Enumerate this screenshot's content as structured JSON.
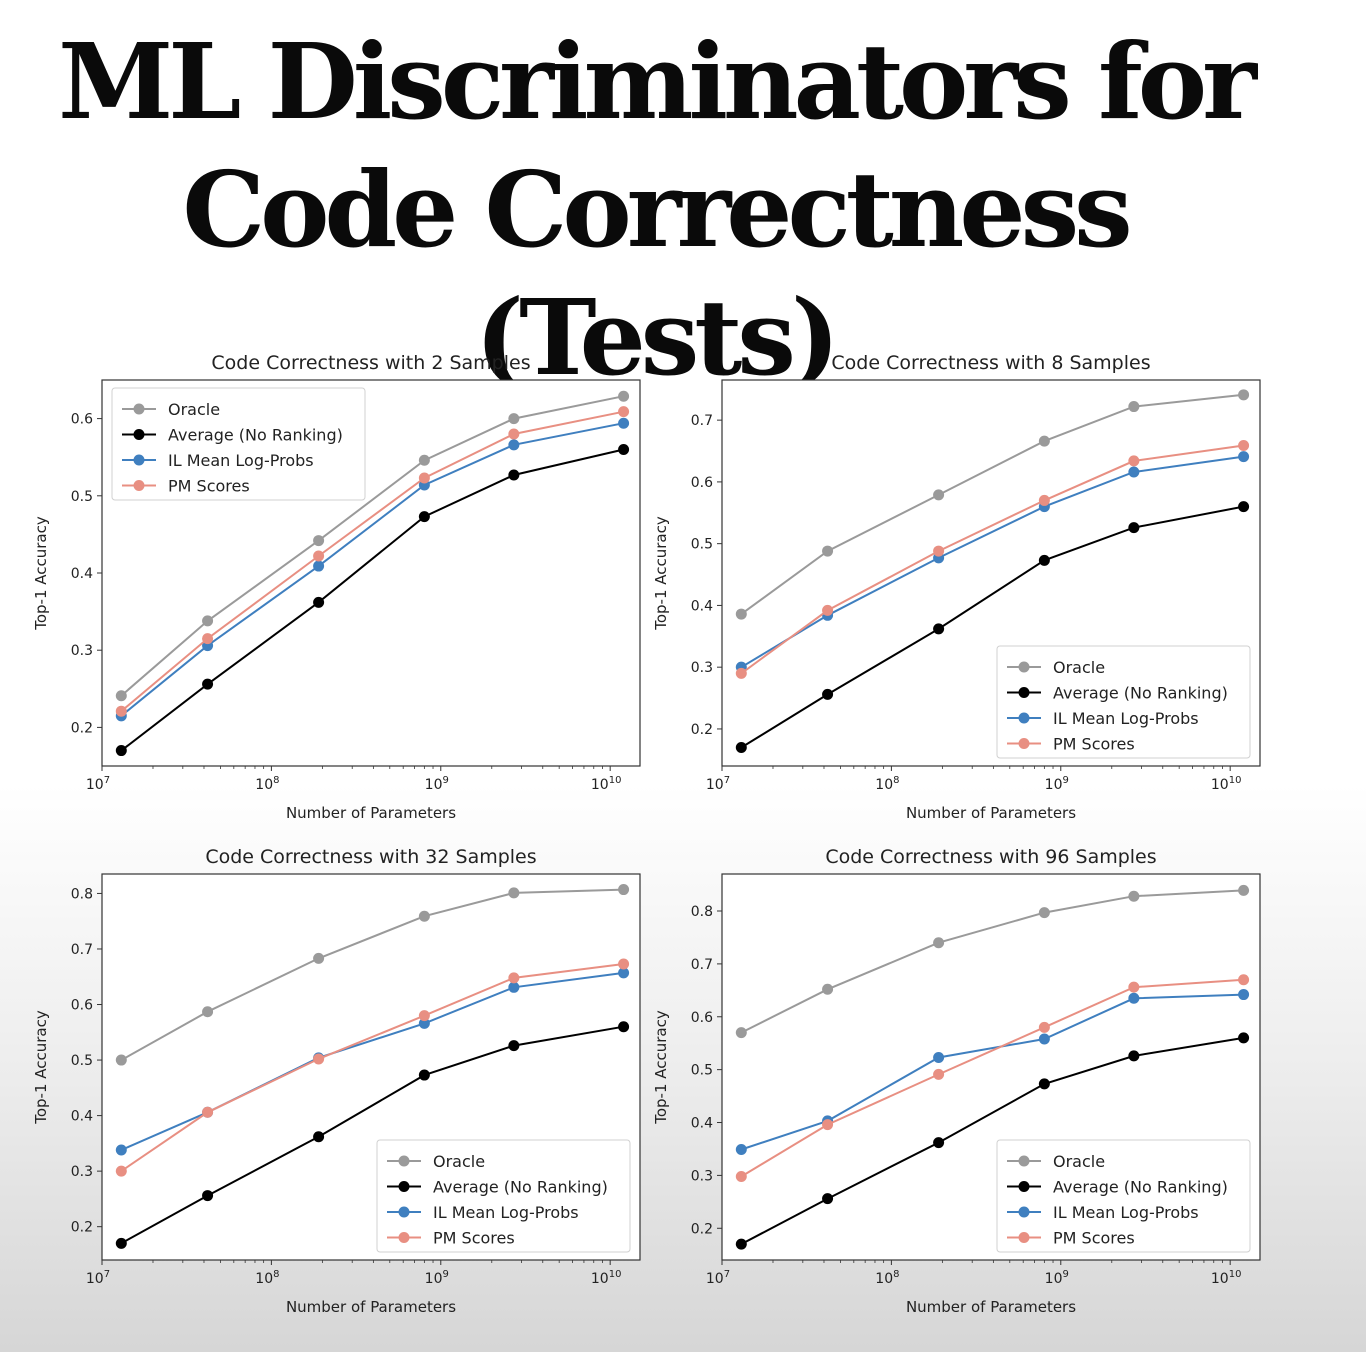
{
  "slide": {
    "title_line1": "ML Discriminators for",
    "title_line2": "Code Correctness (Tests)"
  },
  "series_styles": [
    {
      "name": "Oracle",
      "color": "#9a9a9a"
    },
    {
      "name": "Average (No Ranking)",
      "color": "#000000"
    },
    {
      "name": "IL Mean Log-Probs",
      "color": "#3f7fbf"
    },
    {
      "name": "PM Scores",
      "color": "#e88f82"
    }
  ],
  "chart_data": [
    {
      "type": "line",
      "title": "Code Correctness with 2 Samples",
      "xlabel": "Number of Parameters",
      "ylabel": "Top-1 Accuracy",
      "x_scale": "log",
      "x": [
        13000000,
        42000000,
        190000000,
        800000000,
        2700000000,
        12000000000
      ],
      "xlim": [
        10000000,
        15000000000
      ],
      "ylim": [
        0.15,
        0.65
      ],
      "yticks": [
        0.2,
        0.3,
        0.4,
        0.5,
        0.6
      ],
      "xticks": [
        {
          "base": "10",
          "exp": "7"
        },
        {
          "base": "10",
          "exp": "8"
        },
        {
          "base": "10",
          "exp": "9"
        },
        {
          "base": "10",
          "exp": "10"
        }
      ],
      "legend": "upper-left",
      "series": [
        {
          "name": "Oracle",
          "values": [
            0.241,
            0.338,
            0.442,
            0.546,
            0.6,
            0.629
          ]
        },
        {
          "name": "Average (No Ranking)",
          "values": [
            0.17,
            0.256,
            0.362,
            0.473,
            0.527,
            0.56
          ]
        },
        {
          "name": "IL Mean Log-Probs",
          "values": [
            0.215,
            0.306,
            0.409,
            0.514,
            0.566,
            0.594
          ]
        },
        {
          "name": "PM Scores",
          "values": [
            0.221,
            0.315,
            0.422,
            0.523,
            0.58,
            0.609
          ]
        }
      ]
    },
    {
      "type": "line",
      "title": "Code Correctness with 8 Samples",
      "xlabel": "Number of Parameters",
      "ylabel": "Top-1 Accuracy",
      "x_scale": "log",
      "x": [
        13000000,
        42000000,
        190000000,
        800000000,
        2700000000,
        12000000000
      ],
      "xlim": [
        10000000,
        15000000000
      ],
      "ylim": [
        0.14,
        0.765
      ],
      "yticks": [
        0.2,
        0.3,
        0.4,
        0.5,
        0.6,
        0.7
      ],
      "xticks": [
        {
          "base": "10",
          "exp": "7"
        },
        {
          "base": "10",
          "exp": "8"
        },
        {
          "base": "10",
          "exp": "9"
        },
        {
          "base": "10",
          "exp": "10"
        }
      ],
      "legend": "lower-right",
      "series": [
        {
          "name": "Oracle",
          "values": [
            0.386,
            0.488,
            0.579,
            0.666,
            0.722,
            0.741
          ]
        },
        {
          "name": "Average (No Ranking)",
          "values": [
            0.17,
            0.256,
            0.362,
            0.473,
            0.526,
            0.56
          ]
        },
        {
          "name": "IL Mean Log-Probs",
          "values": [
            0.3,
            0.384,
            0.477,
            0.56,
            0.616,
            0.641
          ]
        },
        {
          "name": "PM Scores",
          "values": [
            0.29,
            0.392,
            0.488,
            0.57,
            0.634,
            0.659
          ]
        }
      ]
    },
    {
      "type": "line",
      "title": "Code Correctness with 32 Samples",
      "xlabel": "Number of Parameters",
      "ylabel": "Top-1 Accuracy",
      "x_scale": "log",
      "x": [
        13000000,
        42000000,
        190000000,
        800000000,
        2700000000,
        12000000000
      ],
      "xlim": [
        10000000,
        15000000000
      ],
      "ylim": [
        0.14,
        0.835
      ],
      "yticks": [
        0.2,
        0.3,
        0.4,
        0.5,
        0.6,
        0.7,
        0.8
      ],
      "xticks": [
        {
          "base": "10",
          "exp": "7"
        },
        {
          "base": "10",
          "exp": "8"
        },
        {
          "base": "10",
          "exp": "9"
        },
        {
          "base": "10",
          "exp": "10"
        }
      ],
      "legend": "lower-right",
      "series": [
        {
          "name": "Oracle",
          "values": [
            0.5,
            0.587,
            0.683,
            0.759,
            0.801,
            0.807
          ]
        },
        {
          "name": "Average (No Ranking)",
          "values": [
            0.17,
            0.256,
            0.362,
            0.473,
            0.526,
            0.56
          ]
        },
        {
          "name": "IL Mean Log-Probs",
          "values": [
            0.338,
            0.406,
            0.504,
            0.566,
            0.631,
            0.657
          ]
        },
        {
          "name": "PM Scores",
          "values": [
            0.3,
            0.406,
            0.502,
            0.58,
            0.648,
            0.673
          ]
        }
      ]
    },
    {
      "type": "line",
      "title": "Code Correctness with 96 Samples",
      "xlabel": "Number of Parameters",
      "ylabel": "Top-1 Accuracy",
      "x_scale": "log",
      "x": [
        13000000,
        42000000,
        190000000,
        800000000,
        2700000000,
        12000000000
      ],
      "xlim": [
        10000000,
        15000000000
      ],
      "ylim": [
        0.14,
        0.87
      ],
      "yticks": [
        0.2,
        0.3,
        0.4,
        0.5,
        0.6,
        0.7,
        0.8
      ],
      "xticks": [
        {
          "base": "10",
          "exp": "7"
        },
        {
          "base": "10",
          "exp": "8"
        },
        {
          "base": "10",
          "exp": "9"
        },
        {
          "base": "10",
          "exp": "10"
        }
      ],
      "legend": "lower-right",
      "series": [
        {
          "name": "Oracle",
          "values": [
            0.57,
            0.652,
            0.74,
            0.797,
            0.828,
            0.839
          ]
        },
        {
          "name": "Average (No Ranking)",
          "values": [
            0.17,
            0.256,
            0.362,
            0.473,
            0.526,
            0.56
          ]
        },
        {
          "name": "IL Mean Log-Probs",
          "values": [
            0.349,
            0.403,
            0.523,
            0.558,
            0.635,
            0.642
          ]
        },
        {
          "name": "PM Scores",
          "values": [
            0.298,
            0.396,
            0.491,
            0.58,
            0.656,
            0.67
          ]
        }
      ]
    }
  ]
}
